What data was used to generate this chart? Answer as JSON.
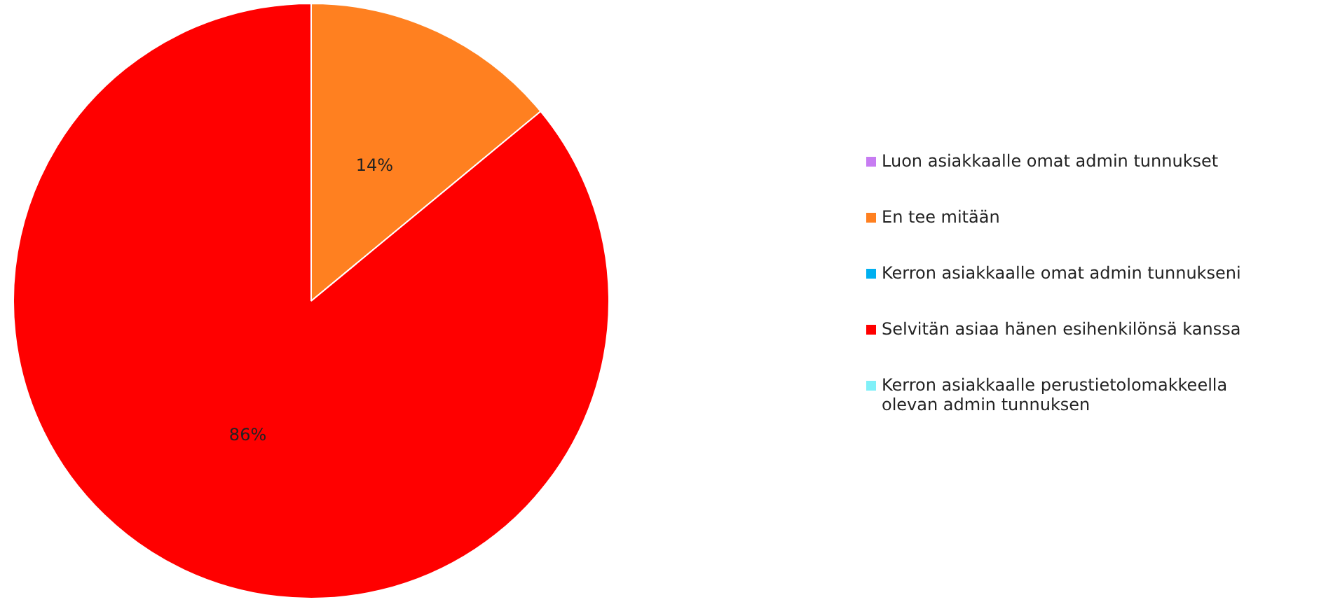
{
  "chart_data": {
    "type": "pie",
    "categories": [
      "Luon asiakkaalle omat admin tunnukset",
      "En tee mitään",
      "Kerron asiakkaalle omat admin tunnukseni",
      "Selvitän asiaa hänen esihenkilönsä kanssa",
      "Kerron asiakkaalle perustietolomakkeella olevan admin tunnuksen"
    ],
    "values": [
      0,
      14,
      0,
      86,
      0
    ],
    "colors": [
      "#c77cf2",
      "#ff8020",
      "#00b0f0",
      "#ff0000",
      "#80f0f8"
    ],
    "value_labels": [
      null,
      "14%",
      null,
      "86%",
      null
    ],
    "legend": "right"
  }
}
